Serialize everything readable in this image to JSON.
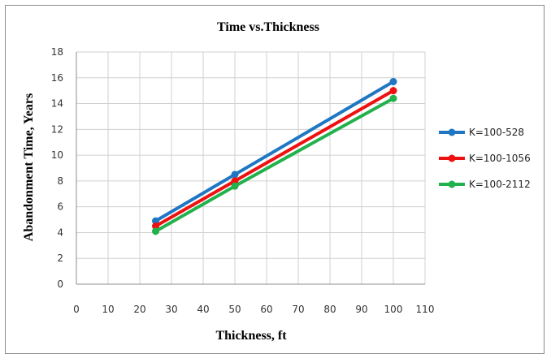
{
  "chart_data": {
    "type": "line",
    "title": "Time vs.Thickness",
    "xlabel": "Thickness, ft",
    "ylabel": "Abandonment Time, Years",
    "xlim": [
      0,
      110
    ],
    "ylim": [
      0,
      18
    ],
    "x_ticks": [
      0,
      10,
      20,
      30,
      40,
      50,
      60,
      70,
      80,
      90,
      100,
      110
    ],
    "y_ticks": [
      0,
      2,
      4,
      6,
      8,
      10,
      12,
      14,
      16,
      18
    ],
    "grid": true,
    "legend_position": "right",
    "x": [
      25,
      50,
      100
    ],
    "series": [
      {
        "name": "K=100-528",
        "color": "#1f77c4",
        "values": [
          4.9,
          8.5,
          15.7
        ]
      },
      {
        "name": "K=100-1056",
        "color": "#ee1111",
        "values": [
          4.5,
          8.0,
          15.0
        ]
      },
      {
        "name": "K=100-2112",
        "color": "#22b14c",
        "values": [
          4.1,
          7.6,
          14.4
        ]
      }
    ]
  }
}
